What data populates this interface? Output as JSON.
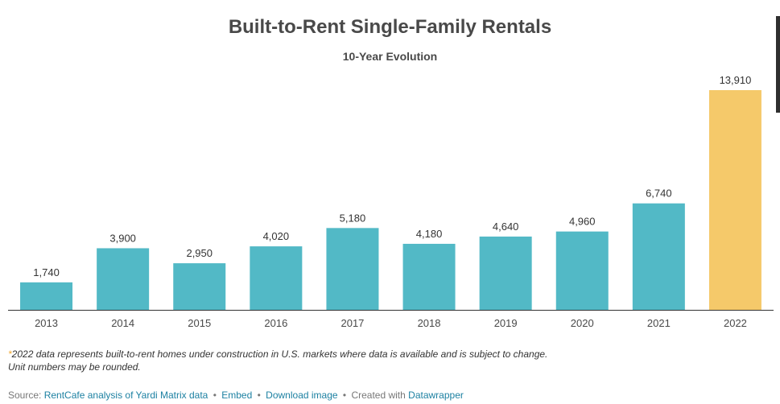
{
  "header": {
    "title": "Built-to-Rent Single-Family Rentals",
    "subtitle": "10-Year Evolution"
  },
  "chart_data": {
    "type": "bar",
    "title": "Built-to-Rent Single-Family Rentals",
    "subtitle": "10-Year Evolution",
    "categories": [
      "2013",
      "2014",
      "2015",
      "2016",
      "2017",
      "2018",
      "2019",
      "2020",
      "2021",
      "2022"
    ],
    "values": [
      1740,
      3900,
      2950,
      4020,
      5180,
      4180,
      4640,
      4960,
      6740,
      13910
    ],
    "value_labels": [
      "1,740",
      "3,900",
      "2,950",
      "4,020",
      "5,180",
      "4,180",
      "4,640",
      "4,960",
      "6,740",
      "13,910"
    ],
    "ylim": [
      0,
      13910
    ],
    "xlabel": "",
    "ylabel": "",
    "grid": false,
    "colors": {
      "default": "#52b9c6",
      "highlight": "#f5c96a",
      "highlight_index": 9,
      "baseline": "#333333"
    }
  },
  "footnote": {
    "marker": "*",
    "line1": "2022 data represents built-to-rent homes under construction in U.S. markets where data is available and is subject to change.",
    "line2": "Unit numbers may be rounded."
  },
  "source": {
    "prefix": "Source:",
    "source_link": "RentCafe analysis of Yardi Matrix data",
    "embed_link": "Embed",
    "download_link": "Download image",
    "created_with": "Created with",
    "datawrapper_link": "Datawrapper",
    "separator": "•"
  }
}
